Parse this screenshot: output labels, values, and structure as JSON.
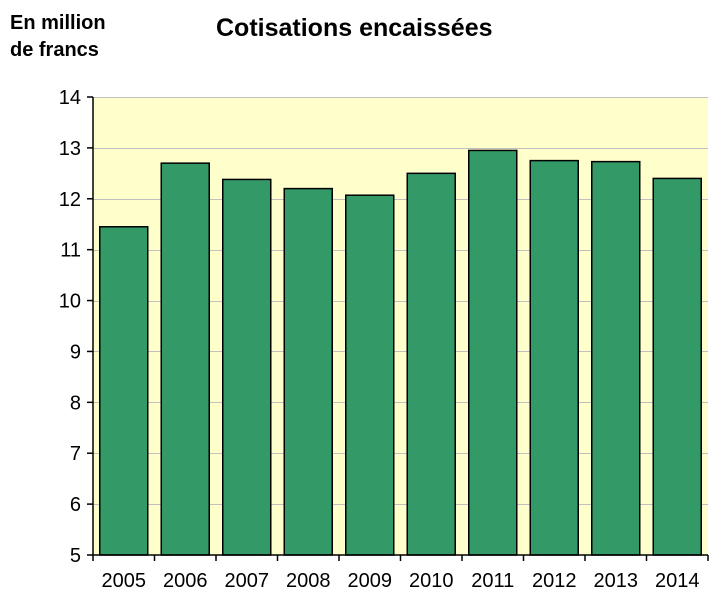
{
  "chart_data": {
    "type": "bar",
    "title": "Cotisations encaissées",
    "ylabel": "En million de francs",
    "ylabel_lines": [
      "En million",
      "de francs"
    ],
    "xlabel": "",
    "categories": [
      "2005",
      "2006",
      "2007",
      "2008",
      "2009",
      "2010",
      "2011",
      "2012",
      "2013",
      "2014"
    ],
    "values": [
      11.45,
      12.7,
      12.38,
      12.2,
      12.07,
      12.5,
      12.95,
      12.75,
      12.73,
      12.4
    ],
    "ylim": [
      5,
      14
    ],
    "yticks": [
      5,
      6,
      7,
      8,
      9,
      10,
      11,
      12,
      13,
      14
    ],
    "grid": true,
    "legend": "none",
    "colors": {
      "bar_fill": "#339966",
      "bar_stroke": "#000000",
      "plot_background": "#FFFFCC",
      "gridline": "#C0C0C0",
      "axis": "#000000"
    }
  }
}
